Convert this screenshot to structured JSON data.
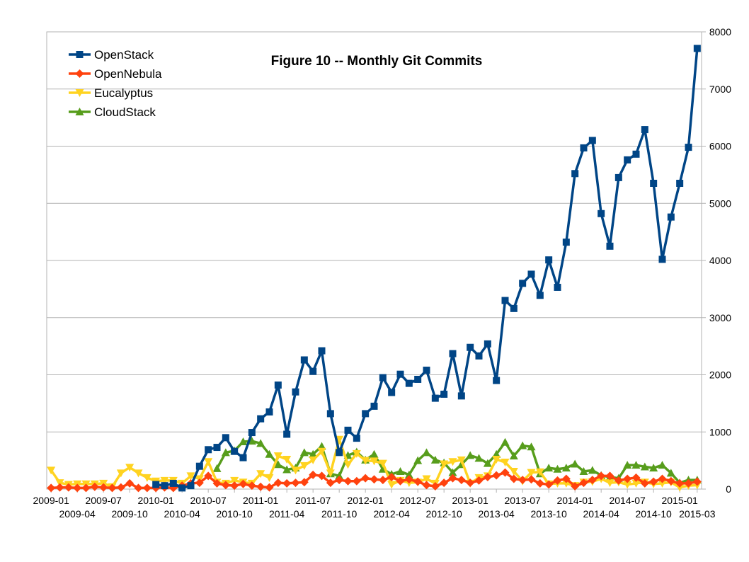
{
  "chart_data": {
    "type": "line",
    "title": "Figure 10 -- Monthly Git Commits",
    "xlabel": "",
    "ylabel": "",
    "y_axis_position": "right",
    "ylim": [
      0,
      8000
    ],
    "yticks": [
      0,
      1000,
      2000,
      3000,
      4000,
      5000,
      6000,
      7000,
      8000
    ],
    "grid": "horizontal",
    "legend_position": "top-left",
    "x_tick_labels": [
      "2009-01",
      "2009-04",
      "2009-07",
      "2009-10",
      "2010-01",
      "2010-04",
      "2010-07",
      "2010-10",
      "2011-01",
      "2011-04",
      "2011-07",
      "2011-10",
      "2012-01",
      "2012-04",
      "2012-07",
      "2012-10",
      "2013-01",
      "2013-04",
      "2013-07",
      "2013-10",
      "2014-01",
      "2014-04",
      "2014-07",
      "2014-10",
      "2015-01",
      "2015-03"
    ],
    "x": [
      "2009-01",
      "2009-02",
      "2009-03",
      "2009-04",
      "2009-05",
      "2009-06",
      "2009-07",
      "2009-08",
      "2009-09",
      "2009-10",
      "2009-11",
      "2009-12",
      "2010-01",
      "2010-02",
      "2010-03",
      "2010-04",
      "2010-05",
      "2010-06",
      "2010-07",
      "2010-08",
      "2010-09",
      "2010-10",
      "2010-11",
      "2010-12",
      "2011-01",
      "2011-02",
      "2011-03",
      "2011-04",
      "2011-05",
      "2011-06",
      "2011-07",
      "2011-08",
      "2011-09",
      "2011-10",
      "2011-11",
      "2011-12",
      "2012-01",
      "2012-02",
      "2012-03",
      "2012-04",
      "2012-05",
      "2012-06",
      "2012-07",
      "2012-08",
      "2012-09",
      "2012-10",
      "2012-11",
      "2012-12",
      "2013-01",
      "2013-02",
      "2013-03",
      "2013-04",
      "2013-05",
      "2013-06",
      "2013-07",
      "2013-08",
      "2013-09",
      "2013-10",
      "2013-11",
      "2013-12",
      "2014-01",
      "2014-02",
      "2014-03",
      "2014-04",
      "2014-05",
      "2014-06",
      "2014-07",
      "2014-08",
      "2014-09",
      "2014-10",
      "2014-11",
      "2014-12",
      "2015-01",
      "2015-02",
      "2015-03"
    ],
    "series": [
      {
        "name": "OpenStack",
        "color": "#004586",
        "marker": "square",
        "values": [
          null,
          null,
          null,
          null,
          null,
          null,
          null,
          null,
          null,
          null,
          null,
          null,
          80,
          60,
          100,
          20,
          60,
          400,
          690,
          730,
          900,
          660,
          550,
          990,
          1230,
          1350,
          1820,
          960,
          1700,
          2260,
          2060,
          2420,
          1320,
          640,
          1030,
          890,
          1320,
          1450,
          1950,
          1690,
          2010,
          1850,
          1920,
          2080,
          1590,
          1660,
          2370,
          1630,
          2480,
          2330,
          2540,
          1900,
          3300,
          3160,
          3600,
          3760,
          3390,
          4010,
          3530,
          4320,
          5520,
          5970,
          6100,
          4820,
          4250,
          5450,
          5760,
          5860,
          6290,
          5350,
          4020,
          4760,
          5350,
          5980,
          7710
        ]
      },
      {
        "name": "OpenNebula",
        "color": "#ff420e",
        "marker": "diamond",
        "values": [
          20,
          30,
          30,
          20,
          20,
          40,
          30,
          20,
          30,
          100,
          20,
          20,
          20,
          30,
          20,
          60,
          100,
          110,
          230,
          100,
          70,
          60,
          90,
          60,
          40,
          30,
          110,
          100,
          110,
          120,
          250,
          230,
          110,
          160,
          140,
          140,
          190,
          170,
          160,
          210,
          140,
          170,
          130,
          70,
          50,
          110,
          190,
          160,
          110,
          150,
          210,
          240,
          290,
          180,
          160,
          170,
          100,
          80,
          150,
          180,
          50,
          110,
          160,
          230,
          230,
          150,
          180,
          200,
          100,
          130,
          180,
          140,
          100,
          100,
          130
        ]
      },
      {
        "name": "Eucalyptus",
        "color": "#ffd320",
        "marker": "triangle-down",
        "values": [
          330,
          110,
          80,
          90,
          90,
          90,
          100,
          40,
          280,
          380,
          280,
          200,
          140,
          150,
          150,
          100,
          230,
          180,
          480,
          120,
          100,
          150,
          120,
          100,
          270,
          200,
          580,
          520,
          330,
          410,
          510,
          660,
          280,
          870,
          430,
          620,
          500,
          490,
          450,
          80,
          150,
          110,
          120,
          180,
          100,
          440,
          480,
          510,
          100,
          200,
          230,
          520,
          470,
          310,
          140,
          290,
          300,
          90,
          100,
          100,
          60,
          120,
          130,
          180,
          110,
          120,
          80,
          100,
          120,
          90,
          100,
          120,
          30,
          60,
          70
        ]
      },
      {
        "name": "CloudStack",
        "color": "#579d1c",
        "marker": "triangle-up",
        "values": [
          null,
          null,
          null,
          null,
          null,
          null,
          null,
          null,
          null,
          null,
          null,
          null,
          null,
          null,
          null,
          null,
          null,
          null,
          null,
          360,
          640,
          670,
          830,
          840,
          800,
          610,
          430,
          340,
          370,
          640,
          610,
          750,
          270,
          230,
          590,
          650,
          510,
          610,
          350,
          260,
          310,
          250,
          500,
          640,
          510,
          460,
          290,
          430,
          590,
          540,
          450,
          610,
          820,
          580,
          760,
          740,
          270,
          370,
          350,
          370,
          440,
          310,
          330,
          240,
          210,
          190,
          420,
          420,
          390,
          370,
          420,
          280,
          110,
          160,
          160
        ]
      }
    ]
  }
}
